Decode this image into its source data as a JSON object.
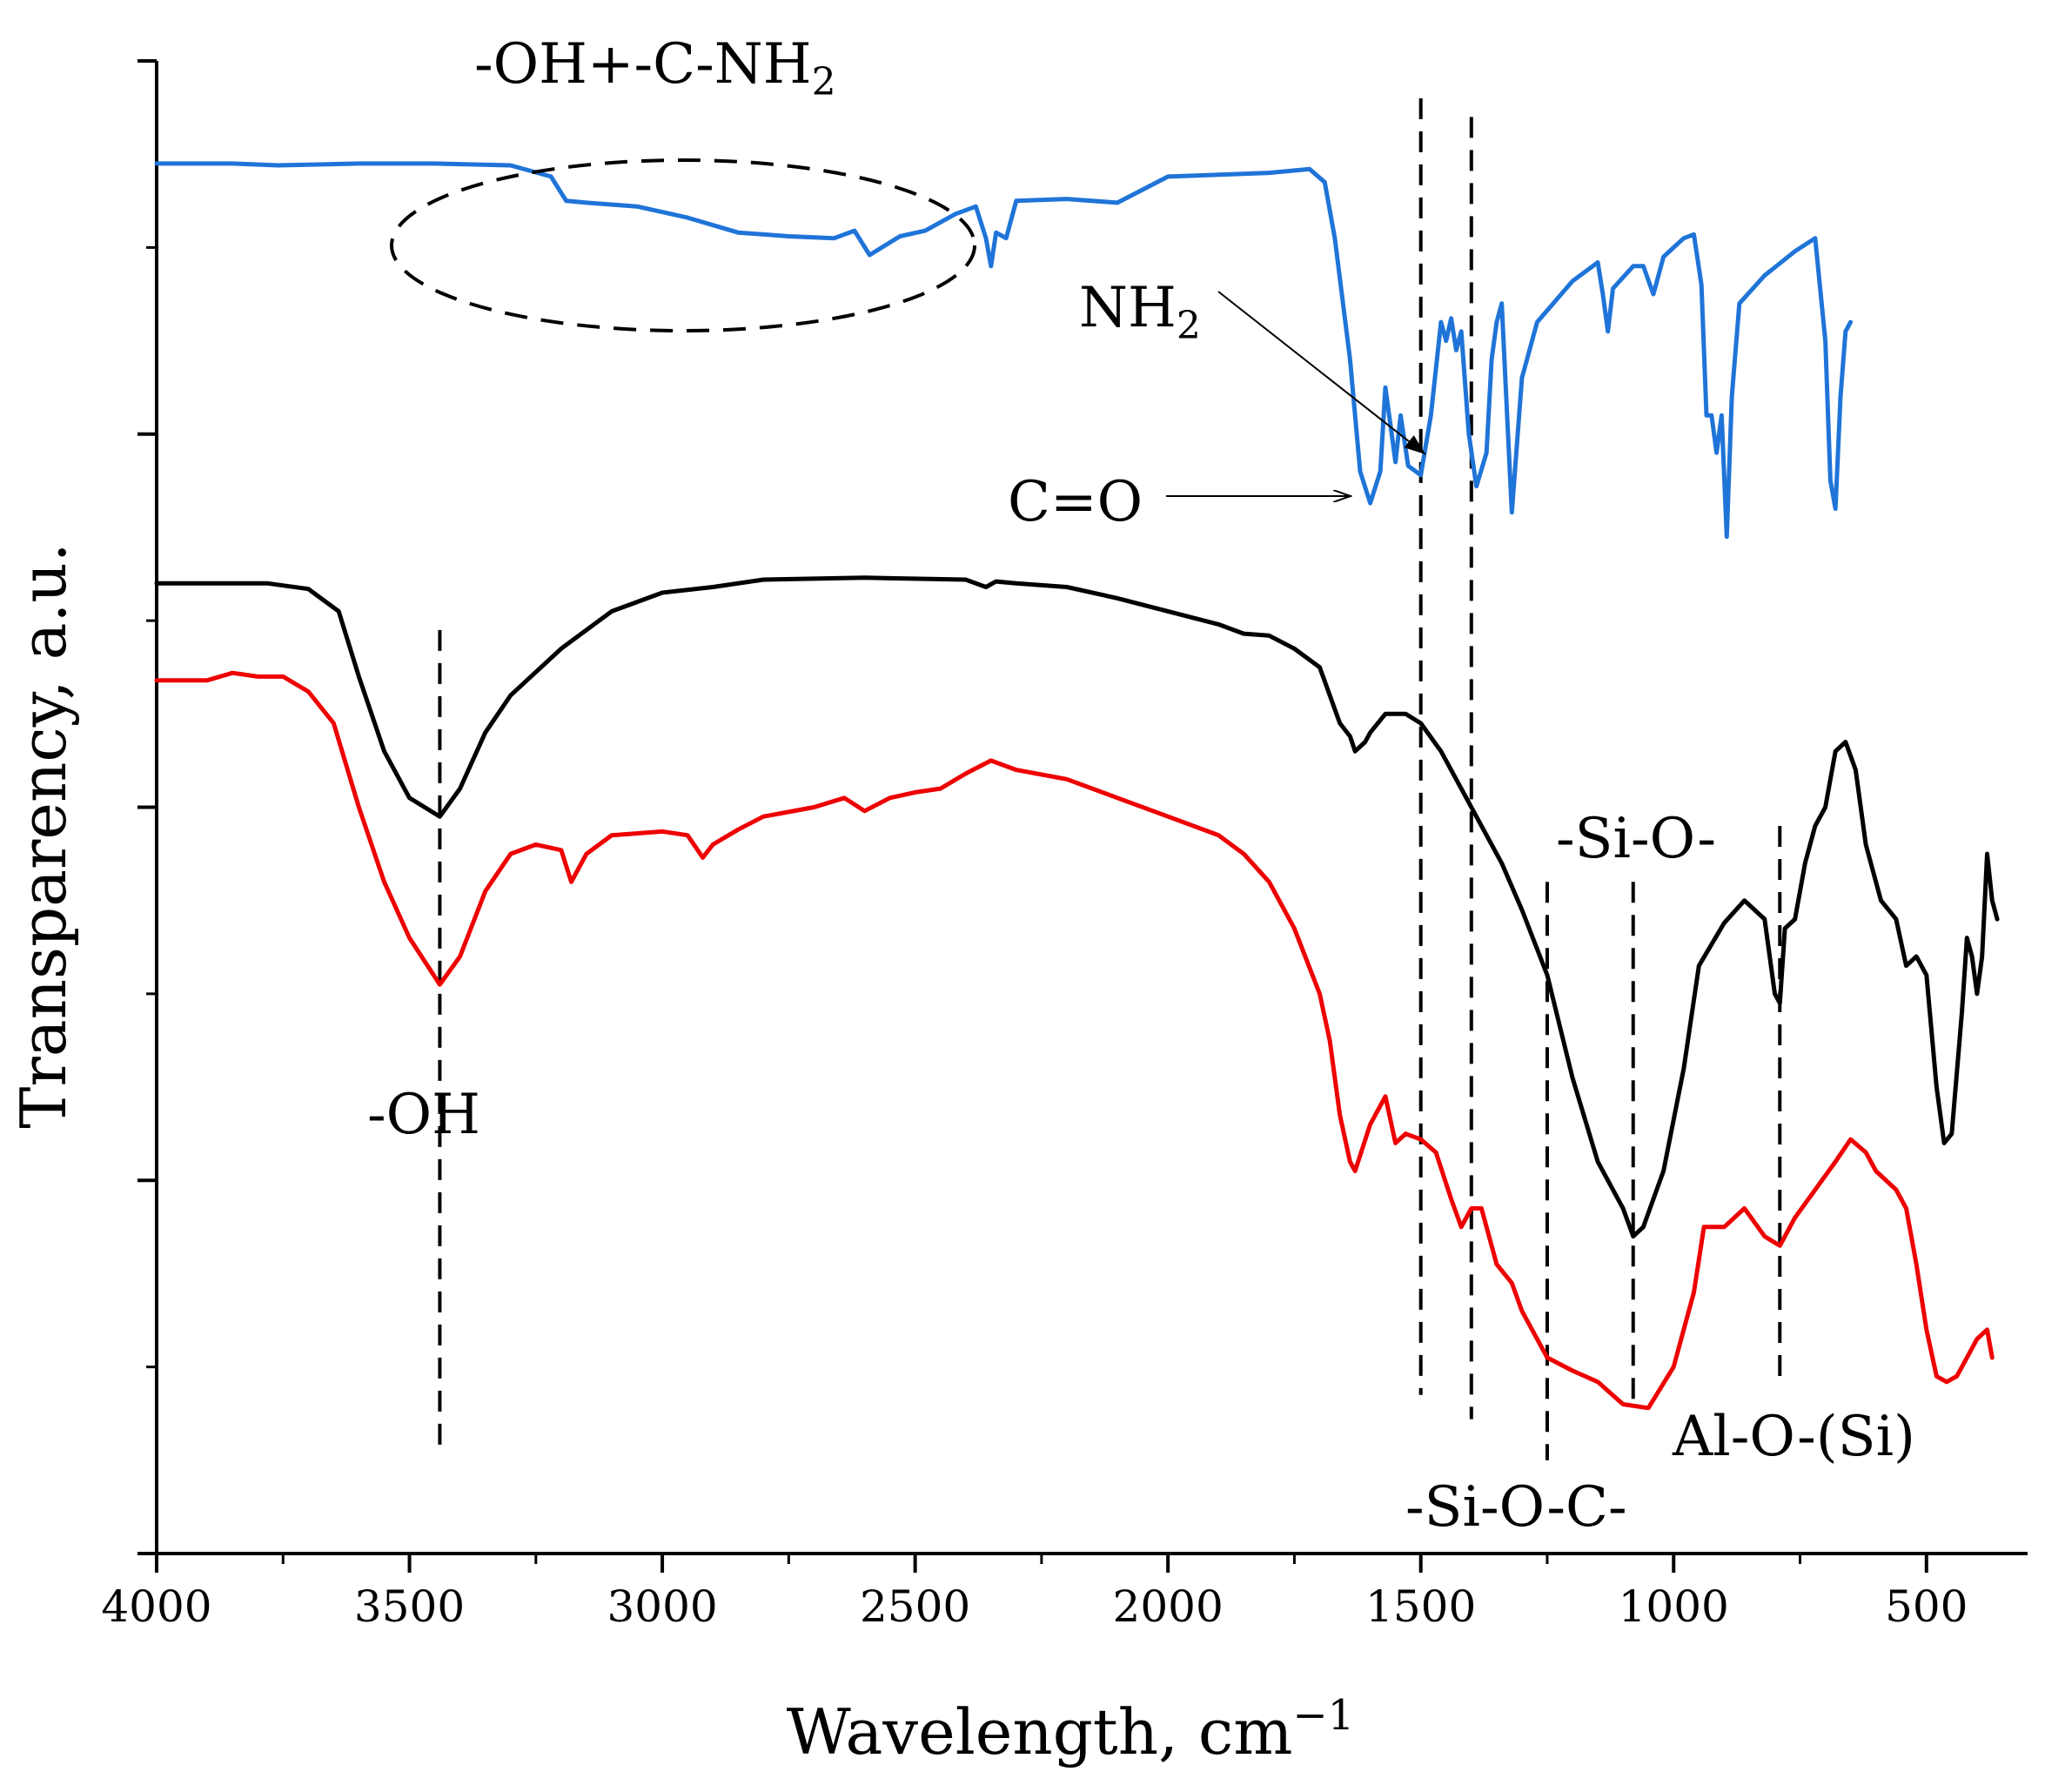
{
  "chart_data": {
    "type": "line",
    "title": "",
    "xlabel": "Wavelength, cm",
    "xlabel_sup": "−1",
    "ylabel": "Transparency, a.u.",
    "xlim": [
      4000,
      300
    ],
    "ylim": [
      0,
      8
    ],
    "x_ticks": [
      4000,
      3500,
      3000,
      2500,
      2000,
      1500,
      1000,
      500
    ],
    "x_minor_ticks": [
      3750,
      3250,
      2750,
      2250,
      1750,
      1250,
      750
    ],
    "y_ticks": [
      0,
      1,
      2,
      3,
      4,
      5,
      6,
      7,
      8
    ],
    "series": [
      {
        "name": "blue-spectrum",
        "color": "#1f74d8",
        "points": [
          [
            4000,
            7.45
          ],
          [
            3850,
            7.45
          ],
          [
            3760,
            7.44
          ],
          [
            3600,
            7.45
          ],
          [
            3450,
            7.45
          ],
          [
            3300,
            7.44
          ],
          [
            3220,
            7.38
          ],
          [
            3190,
            7.25
          ],
          [
            3150,
            7.24
          ],
          [
            3050,
            7.22
          ],
          [
            2950,
            7.16
          ],
          [
            2850,
            7.08
          ],
          [
            2750,
            7.06
          ],
          [
            2660,
            7.05
          ],
          [
            2620,
            7.09
          ],
          [
            2590,
            6.96
          ],
          [
            2530,
            7.06
          ],
          [
            2480,
            7.09
          ],
          [
            2420,
            7.18
          ],
          [
            2380,
            7.22
          ],
          [
            2360,
            7.05
          ],
          [
            2350,
            6.9
          ],
          [
            2340,
            7.08
          ],
          [
            2320,
            7.05
          ],
          [
            2300,
            7.25
          ],
          [
            2200,
            7.26
          ],
          [
            2100,
            7.24
          ],
          [
            2000,
            7.38
          ],
          [
            1800,
            7.4
          ],
          [
            1720,
            7.42
          ],
          [
            1690,
            7.35
          ],
          [
            1670,
            7.05
          ],
          [
            1640,
            6.4
          ],
          [
            1620,
            5.8
          ],
          [
            1600,
            5.63
          ],
          [
            1580,
            5.8
          ],
          [
            1570,
            6.25
          ],
          [
            1560,
            6.05
          ],
          [
            1550,
            5.85
          ],
          [
            1540,
            6.1
          ],
          [
            1525,
            5.83
          ],
          [
            1500,
            5.78
          ],
          [
            1480,
            6.1
          ],
          [
            1460,
            6.6
          ],
          [
            1450,
            6.5
          ],
          [
            1440,
            6.62
          ],
          [
            1430,
            6.45
          ],
          [
            1420,
            6.55
          ],
          [
            1405,
            6.0
          ],
          [
            1390,
            5.72
          ],
          [
            1370,
            5.9
          ],
          [
            1360,
            6.4
          ],
          [
            1350,
            6.6
          ],
          [
            1340,
            6.7
          ],
          [
            1320,
            5.58
          ],
          [
            1300,
            6.3
          ],
          [
            1270,
            6.6
          ],
          [
            1200,
            6.82
          ],
          [
            1150,
            6.92
          ],
          [
            1140,
            6.75
          ],
          [
            1130,
            6.55
          ],
          [
            1120,
            6.78
          ],
          [
            1080,
            6.9
          ],
          [
            1060,
            6.9
          ],
          [
            1040,
            6.75
          ],
          [
            1020,
            6.95
          ],
          [
            1000,
            7.0
          ],
          [
            980,
            7.05
          ],
          [
            960,
            7.07
          ],
          [
            945,
            6.8
          ],
          [
            935,
            6.1
          ],
          [
            925,
            6.1
          ],
          [
            915,
            5.9
          ],
          [
            905,
            6.1
          ],
          [
            895,
            5.45
          ],
          [
            885,
            6.2
          ],
          [
            870,
            6.7
          ],
          [
            820,
            6.85
          ],
          [
            760,
            6.98
          ],
          [
            720,
            7.05
          ],
          [
            700,
            6.5
          ],
          [
            690,
            5.75
          ],
          [
            680,
            5.6
          ],
          [
            670,
            6.2
          ],
          [
            660,
            6.55
          ],
          [
            650,
            6.6
          ]
        ]
      },
      {
        "name": "black-spectrum",
        "color": "#000000",
        "points": [
          [
            4000,
            5.2
          ],
          [
            3860,
            5.2
          ],
          [
            3780,
            5.2
          ],
          [
            3700,
            5.17
          ],
          [
            3640,
            5.05
          ],
          [
            3600,
            4.7
          ],
          [
            3550,
            4.3
          ],
          [
            3500,
            4.05
          ],
          [
            3440,
            3.95
          ],
          [
            3400,
            4.1
          ],
          [
            3350,
            4.4
          ],
          [
            3300,
            4.6
          ],
          [
            3200,
            4.85
          ],
          [
            3100,
            5.05
          ],
          [
            3000,
            5.15
          ],
          [
            2900,
            5.18
          ],
          [
            2800,
            5.22
          ],
          [
            2600,
            5.23
          ],
          [
            2400,
            5.22
          ],
          [
            2360,
            5.18
          ],
          [
            2340,
            5.21
          ],
          [
            2300,
            5.2
          ],
          [
            2200,
            5.18
          ],
          [
            2100,
            5.12
          ],
          [
            2000,
            5.05
          ],
          [
            1900,
            4.98
          ],
          [
            1850,
            4.93
          ],
          [
            1800,
            4.92
          ],
          [
            1750,
            4.85
          ],
          [
            1700,
            4.75
          ],
          [
            1680,
            4.6
          ],
          [
            1660,
            4.45
          ],
          [
            1640,
            4.38
          ],
          [
            1630,
            4.3
          ],
          [
            1610,
            4.35
          ],
          [
            1600,
            4.4
          ],
          [
            1570,
            4.5
          ],
          [
            1530,
            4.5
          ],
          [
            1500,
            4.45
          ],
          [
            1460,
            4.3
          ],
          [
            1420,
            4.1
          ],
          [
            1380,
            3.9
          ],
          [
            1340,
            3.7
          ],
          [
            1300,
            3.45
          ],
          [
            1250,
            3.1
          ],
          [
            1200,
            2.55
          ],
          [
            1150,
            2.1
          ],
          [
            1100,
            1.85
          ],
          [
            1080,
            1.7
          ],
          [
            1060,
            1.75
          ],
          [
            1020,
            2.05
          ],
          [
            980,
            2.6
          ],
          [
            950,
            3.15
          ],
          [
            900,
            3.38
          ],
          [
            860,
            3.5
          ],
          [
            820,
            3.4
          ],
          [
            800,
            3.0
          ],
          [
            790,
            2.95
          ],
          [
            780,
            3.35
          ],
          [
            760,
            3.4
          ],
          [
            740,
            3.7
          ],
          [
            720,
            3.9
          ],
          [
            700,
            4.0
          ],
          [
            680,
            4.3
          ],
          [
            660,
            4.35
          ],
          [
            640,
            4.2
          ],
          [
            620,
            3.8
          ],
          [
            590,
            3.5
          ],
          [
            560,
            3.4
          ],
          [
            540,
            3.15
          ],
          [
            520,
            3.2
          ],
          [
            500,
            3.1
          ],
          [
            480,
            2.5
          ],
          [
            465,
            2.2
          ],
          [
            450,
            2.25
          ],
          [
            430,
            2.9
          ],
          [
            420,
            3.3
          ],
          [
            410,
            3.2
          ],
          [
            400,
            3.0
          ],
          [
            390,
            3.2
          ],
          [
            380,
            3.75
          ],
          [
            370,
            3.5
          ],
          [
            360,
            3.4
          ]
        ]
      },
      {
        "name": "red-spectrum",
        "color": "#ee0000",
        "points": [
          [
            4000,
            4.68
          ],
          [
            3900,
            4.68
          ],
          [
            3850,
            4.72
          ],
          [
            3800,
            4.7
          ],
          [
            3750,
            4.7
          ],
          [
            3700,
            4.62
          ],
          [
            3650,
            4.45
          ],
          [
            3600,
            4.0
          ],
          [
            3550,
            3.6
          ],
          [
            3500,
            3.3
          ],
          [
            3440,
            3.05
          ],
          [
            3400,
            3.2
          ],
          [
            3350,
            3.55
          ],
          [
            3300,
            3.75
          ],
          [
            3250,
            3.8
          ],
          [
            3200,
            3.77
          ],
          [
            3180,
            3.6
          ],
          [
            3150,
            3.75
          ],
          [
            3100,
            3.85
          ],
          [
            3000,
            3.87
          ],
          [
            2950,
            3.85
          ],
          [
            2920,
            3.73
          ],
          [
            2900,
            3.8
          ],
          [
            2850,
            3.88
          ],
          [
            2800,
            3.95
          ],
          [
            2700,
            4.0
          ],
          [
            2640,
            4.05
          ],
          [
            2600,
            3.98
          ],
          [
            2550,
            4.05
          ],
          [
            2500,
            4.08
          ],
          [
            2450,
            4.1
          ],
          [
            2400,
            4.18
          ],
          [
            2350,
            4.25
          ],
          [
            2300,
            4.2
          ],
          [
            2200,
            4.15
          ],
          [
            2100,
            4.05
          ],
          [
            2000,
            3.95
          ],
          [
            1900,
            3.85
          ],
          [
            1850,
            3.75
          ],
          [
            1800,
            3.6
          ],
          [
            1750,
            3.35
          ],
          [
            1700,
            3.0
          ],
          [
            1680,
            2.75
          ],
          [
            1660,
            2.35
          ],
          [
            1640,
            2.1
          ],
          [
            1630,
            2.05
          ],
          [
            1600,
            2.3
          ],
          [
            1570,
            2.45
          ],
          [
            1550,
            2.2
          ],
          [
            1530,
            2.25
          ],
          [
            1500,
            2.22
          ],
          [
            1470,
            2.15
          ],
          [
            1440,
            1.9
          ],
          [
            1420,
            1.75
          ],
          [
            1400,
            1.85
          ],
          [
            1380,
            1.85
          ],
          [
            1350,
            1.55
          ],
          [
            1320,
            1.45
          ],
          [
            1300,
            1.3
          ],
          [
            1250,
            1.05
          ],
          [
            1200,
            0.98
          ],
          [
            1150,
            0.92
          ],
          [
            1100,
            0.8
          ],
          [
            1050,
            0.78
          ],
          [
            1000,
            1.0
          ],
          [
            960,
            1.4
          ],
          [
            940,
            1.75
          ],
          [
            900,
            1.75
          ],
          [
            860,
            1.85
          ],
          [
            820,
            1.7
          ],
          [
            790,
            1.65
          ],
          [
            760,
            1.8
          ],
          [
            720,
            1.95
          ],
          [
            680,
            2.1
          ],
          [
            650,
            2.22
          ],
          [
            620,
            2.15
          ],
          [
            600,
            2.05
          ],
          [
            560,
            1.95
          ],
          [
            540,
            1.85
          ],
          [
            520,
            1.55
          ],
          [
            500,
            1.2
          ],
          [
            480,
            0.95
          ],
          [
            460,
            0.92
          ],
          [
            440,
            0.95
          ],
          [
            420,
            1.05
          ],
          [
            400,
            1.15
          ],
          [
            380,
            1.2
          ],
          [
            370,
            1.05
          ]
        ]
      }
    ],
    "annotations": [
      {
        "id": "oh-nh2",
        "text": "-OH+-C-NH",
        "sub": "2"
      },
      {
        "id": "nh2",
        "text": "NH",
        "sub": "2"
      },
      {
        "id": "co",
        "text": "C=O"
      },
      {
        "id": "oh",
        "text": "-OH"
      },
      {
        "id": "si-o",
        "text": "-Si-O-"
      },
      {
        "id": "si-o-c",
        "text": "-Si-O-C-"
      },
      {
        "id": "al-o-si",
        "text": "Al-O-(Si)"
      }
    ],
    "reference_lines": [
      3440,
      1500,
      1400,
      1250,
      1080,
      790
    ]
  }
}
